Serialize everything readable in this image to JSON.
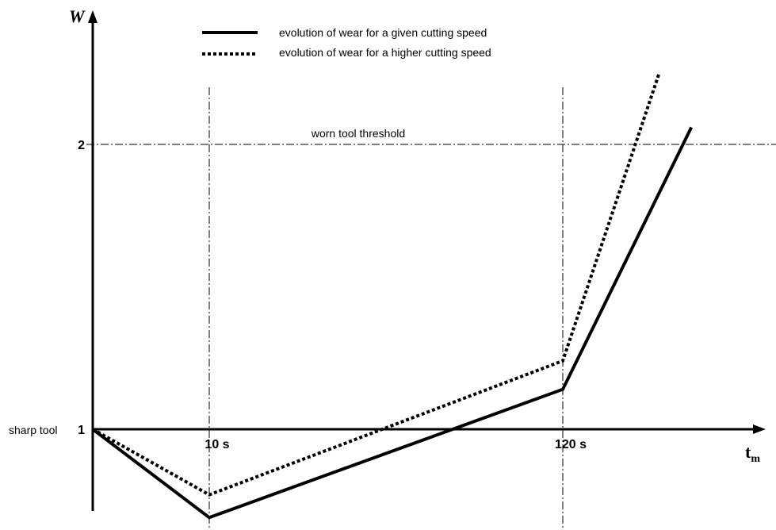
{
  "chart_data": {
    "type": "line",
    "title": "",
    "ylabel": "W",
    "xlabel": "t",
    "xlabel_subscript": "m",
    "x_ticks": [
      {
        "x": 10,
        "label": "10 s"
      },
      {
        "x": 120,
        "label": "120 s"
      }
    ],
    "y_ticks": [
      {
        "y": 1,
        "label": "1"
      },
      {
        "y": 2,
        "label": "2"
      }
    ],
    "origin_label": "sharp tool",
    "threshold": {
      "y": 2,
      "label": "worn tool threshold"
    },
    "legend_position": "top",
    "series": [
      {
        "name": "evolution of wear for a given cutting speed",
        "style": "solid",
        "points": [
          {
            "x": 0,
            "y": 1.0
          },
          {
            "x": 10,
            "y": 0.69
          },
          {
            "x": 120,
            "y": 1.14
          },
          {
            "x": 160,
            "y": 2.06
          }
        ]
      },
      {
        "name": "evolution of wear for a higher cutting speed",
        "style": "dotted",
        "points": [
          {
            "x": 0,
            "y": 1.0
          },
          {
            "x": 10,
            "y": 0.77
          },
          {
            "x": 120,
            "y": 1.24
          },
          {
            "x": 150,
            "y": 2.25
          }
        ]
      }
    ]
  }
}
